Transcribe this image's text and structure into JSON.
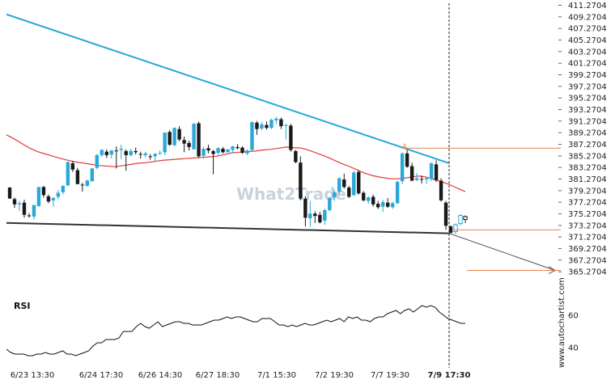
{
  "chart_data": [
    {
      "type": "candlestick",
      "ylim": [
        363.2704,
        411.2704
      ],
      "y_ticks": [
        411.2704,
        409.2704,
        407.2704,
        405.2704,
        403.2704,
        401.2704,
        399.2704,
        397.2704,
        395.2704,
        393.2704,
        391.2704,
        389.2704,
        387.2704,
        385.2704,
        383.2704,
        381.2704,
        379.2704,
        377.2704,
        375.2704,
        373.2704,
        371.2704,
        369.2704,
        367.2704,
        365.2704
      ],
      "y_tick_labels": [
        "411.2704",
        "409.2704",
        "407.2704",
        "405.2704",
        "403.2704",
        "401.2704",
        "399.2704",
        "397.2704",
        "395.2704",
        "393.2704",
        "391.2704",
        "389.2704",
        "387.2704",
        "385.2704",
        "383.2704",
        "381.2704",
        "379.2704",
        "377.2704",
        "375.2704",
        "373.2704",
        "371.2704",
        "369.2704",
        "367.2704",
        "365.2704"
      ],
      "x_tick_labels": [
        "6/23 13:30",
        "6/24 17:30",
        "6/26 14:30",
        "6/27 18:30",
        "7/1 15:30",
        "7/2 19:30",
        "7/7 19:30",
        "7/9 17:30"
      ],
      "candles": [
        [
          379.8,
          379.9,
          377.9,
          377.9
        ],
        [
          377.8,
          378.1,
          376.3,
          376.9
        ],
        [
          376.9,
          377.5,
          375.8,
          377.1
        ],
        [
          377.2,
          377.7,
          374.6,
          375.1
        ],
        [
          375.0,
          375.4,
          374.6,
          374.9
        ],
        [
          374.8,
          376.8,
          374.3,
          376.8
        ],
        [
          376.6,
          379.9,
          376.5,
          379.9
        ],
        [
          379.9,
          380.1,
          378.1,
          378.5
        ],
        [
          378.3,
          378.6,
          377.1,
          377.4
        ],
        [
          377.6,
          378.2,
          376.5,
          378.0
        ],
        [
          378.2,
          379.4,
          377.8,
          378.9
        ],
        [
          379.0,
          380.2,
          378.6,
          380.1
        ],
        [
          380.2,
          384.3,
          380.0,
          384.2
        ],
        [
          384.0,
          384.4,
          382.5,
          382.9
        ],
        [
          382.8,
          383.2,
          380.4,
          380.4
        ],
        [
          380.3,
          380.6,
          379.1,
          380.2
        ],
        [
          380.1,
          381.2,
          379.9,
          381.0
        ],
        [
          380.9,
          383.2,
          380.8,
          383.1
        ],
        [
          383.2,
          385.6,
          383.0,
          385.4
        ],
        [
          385.4,
          386.4,
          385.1,
          386.3
        ],
        [
          386.0,
          386.4,
          384.9,
          385.4
        ],
        [
          385.5,
          386.3,
          384.8,
          386.2
        ],
        [
          386.2,
          386.9,
          383.1,
          386.1
        ],
        [
          386.3,
          387.2,
          384.7,
          386.5
        ],
        [
          386.1,
          386.4,
          382.7,
          385.4
        ],
        [
          385.4,
          386.5,
          385.2,
          386.1
        ],
        [
          386.1,
          386.7,
          385.5,
          385.9
        ],
        [
          385.6,
          386.0,
          384.8,
          385.5
        ],
        [
          385.4,
          386.0,
          385.0,
          385.7
        ],
        [
          385.2,
          385.6,
          384.6,
          385.1
        ],
        [
          385.2,
          385.8,
          384.3,
          385.6
        ],
        [
          385.7,
          386.2,
          385.4,
          385.8
        ],
        [
          385.9,
          389.3,
          385.4,
          389.3
        ],
        [
          389.4,
          389.7,
          387.0,
          387.2
        ],
        [
          387.1,
          390.2,
          387.0,
          390.1
        ],
        [
          389.9,
          390.4,
          387.8,
          388.1
        ],
        [
          388.0,
          388.6,
          385.9,
          387.4
        ],
        [
          387.5,
          387.9,
          386.2,
          386.8
        ],
        [
          386.4,
          391.0,
          386.4,
          390.8
        ],
        [
          390.9,
          391.2,
          384.9,
          385.2
        ],
        [
          385.3,
          386.9,
          384.8,
          386.5
        ],
        [
          386.6,
          387.2,
          385.7,
          386.2
        ],
        [
          386.1,
          386.3,
          382.1,
          385.6
        ],
        [
          385.8,
          386.8,
          385.4,
          386.6
        ],
        [
          386.5,
          386.8,
          385.7,
          385.9
        ],
        [
          385.9,
          386.4,
          386.2,
          386.4
        ],
        [
          386.3,
          387.0,
          385.7,
          386.9
        ],
        [
          386.8,
          387.3,
          386.4,
          386.6
        ],
        [
          386.7,
          386.9,
          385.6,
          385.8
        ],
        [
          385.7,
          386.4,
          385.4,
          386.2
        ],
        [
          386.3,
          391.2,
          386.0,
          391.1
        ],
        [
          391.0,
          391.3,
          388.9,
          389.9
        ],
        [
          390.0,
          391.1,
          389.7,
          390.7
        ],
        [
          390.6,
          391.2,
          389.8,
          390.1
        ],
        [
          390.1,
          391.7,
          389.9,
          391.5
        ],
        [
          391.4,
          392.0,
          390.8,
          391.7
        ],
        [
          391.6,
          391.9,
          389.9,
          390.4
        ],
        [
          390.5,
          390.8,
          388.1,
          390.6
        ],
        [
          390.5,
          390.8,
          386.0,
          386.3
        ],
        [
          386.1,
          386.3,
          384.0,
          384.2
        ],
        [
          384.1,
          385.2,
          377.6,
          377.9
        ],
        [
          377.9,
          378.3,
          373.1,
          374.6
        ],
        [
          374.5,
          377.5,
          373.0,
          375.3
        ],
        [
          375.3,
          375.7,
          373.7,
          374.9
        ],
        [
          375.1,
          375.6,
          373.6,
          373.8
        ],
        [
          374.1,
          376.2,
          373.4,
          375.9
        ],
        [
          375.9,
          378.2,
          375.7,
          378.0
        ],
        [
          378.1,
          379.4,
          377.5,
          379.0
        ],
        [
          379.1,
          381.6,
          378.6,
          381.4
        ],
        [
          381.2,
          382.2,
          379.6,
          379.9
        ],
        [
          379.8,
          380.1,
          378.0,
          378.2
        ],
        [
          378.5,
          382.7,
          378.4,
          382.4
        ],
        [
          382.5,
          382.8,
          378.6,
          378.8
        ],
        [
          378.9,
          379.2,
          377.4,
          377.6
        ],
        [
          377.5,
          378.3,
          377.0,
          378.1
        ],
        [
          378.2,
          378.6,
          376.5,
          376.9
        ],
        [
          377.0,
          377.5,
          376.1,
          376.4
        ],
        [
          376.5,
          377.7,
          375.6,
          377.3
        ],
        [
          377.2,
          378.0,
          376.3,
          376.5
        ],
        [
          376.4,
          377.4,
          376.1,
          377.1
        ],
        [
          377.1,
          381.0,
          377.0,
          380.8
        ],
        [
          380.9,
          385.9,
          380.4,
          385.7
        ],
        [
          385.7,
          386.4,
          383.2,
          383.4
        ],
        [
          383.5,
          384.1,
          380.9,
          381.0
        ],
        [
          381.1,
          382.3,
          380.9,
          381.4
        ],
        [
          381.3,
          381.9,
          380.5,
          381.2
        ],
        [
          381.2,
          381.7,
          380.4,
          381.4
        ],
        [
          381.3,
          384.1,
          380.9,
          384.0
        ],
        [
          383.8,
          384.5,
          380.8,
          381.1
        ],
        [
          381.0,
          381.4,
          377.4,
          377.6
        ],
        [
          377.2,
          377.5,
          372.5,
          373.2
        ],
        [
          373.1,
          373.3,
          371.8,
          372.0
        ],
        [
          372.2,
          373.6,
          371.8,
          373.4
        ],
        [
          373.6,
          375.2,
          373.3,
          375.0
        ],
        [
          374.8,
          375.0,
          373.7,
          374.3
        ]
      ],
      "moving_average": [
        388.9,
        388.2,
        387.4,
        386.6,
        386.0,
        385.6,
        385.2,
        384.8,
        384.5,
        384.2,
        384.0,
        383.8,
        383.6,
        383.5,
        383.4,
        383.6,
        383.8,
        384.0,
        384.1,
        384.3,
        384.5,
        384.6,
        384.7,
        384.8,
        384.9,
        385.0,
        385.1,
        385.2,
        385.5,
        385.8,
        385.9,
        386.0,
        386.1,
        386.3,
        386.4,
        386.6,
        386.8,
        386.7,
        386.6,
        386.2,
        385.7,
        385.2,
        384.6,
        384.0,
        383.5,
        382.9,
        382.3,
        381.9,
        381.6,
        381.4,
        381.3,
        381.4,
        381.6,
        381.8,
        381.6,
        381.2,
        380.8,
        380.3,
        379.7,
        379.1
      ],
      "resistance_line": {
        "from": [
          "start",
          409.7
        ],
        "to": [
          "7/9 17:30",
          384.0
        ]
      },
      "support_line": {
        "from": [
          "start",
          373.7
        ],
        "to": [
          "7/9 17:30",
          371.9
        ]
      },
      "projection": {
        "from": [
          "7/9 17:30",
          371.9
        ],
        "to_price": 365.5
      },
      "levels": [
        386.6,
        372.5,
        365.5
      ],
      "marker": {
        "text": "A",
        "price": 386.6
      },
      "watermark": "What2Trade",
      "current_marker": "7/9 17:30"
    },
    {
      "type": "line",
      "name": "RSI",
      "title": "RSI",
      "ylim": [
        30,
        70
      ],
      "y_ticks": [
        60,
        40
      ],
      "y_tick_labels": [
        "60",
        "40"
      ],
      "values": [
        39,
        37,
        36,
        36,
        36,
        35,
        35,
        36,
        36,
        37,
        36,
        36,
        37,
        38,
        36,
        36,
        35,
        36,
        37,
        38,
        41,
        43,
        43,
        45,
        45,
        45,
        46,
        50,
        50,
        50,
        53,
        55,
        53,
        52,
        54,
        56,
        53,
        54,
        55,
        56,
        56,
        55,
        55,
        54,
        54,
        54,
        55,
        56,
        57,
        57,
        58,
        59,
        58,
        59,
        59,
        58,
        57,
        56,
        56,
        58,
        58,
        58,
        56,
        54,
        54,
        53,
        54,
        53,
        54,
        55,
        54,
        54,
        55,
        56,
        57,
        56,
        57,
        58,
        56,
        59,
        58,
        59,
        57,
        57,
        56,
        58,
        59,
        59,
        61,
        62,
        63,
        61,
        63,
        64,
        62,
        64,
        66,
        65,
        66,
        65,
        62,
        60,
        58,
        57,
        56,
        55,
        55
      ]
    }
  ],
  "side_brand": "www.autochartist.com",
  "colors": {
    "candle_up": "#2aa8d8",
    "candle_down": "#1a1a1a",
    "moving_average": "#e23b3b",
    "resistance": "#2aa8d8",
    "support": "#333333",
    "level": "#e8834a",
    "projection": "#555555"
  }
}
